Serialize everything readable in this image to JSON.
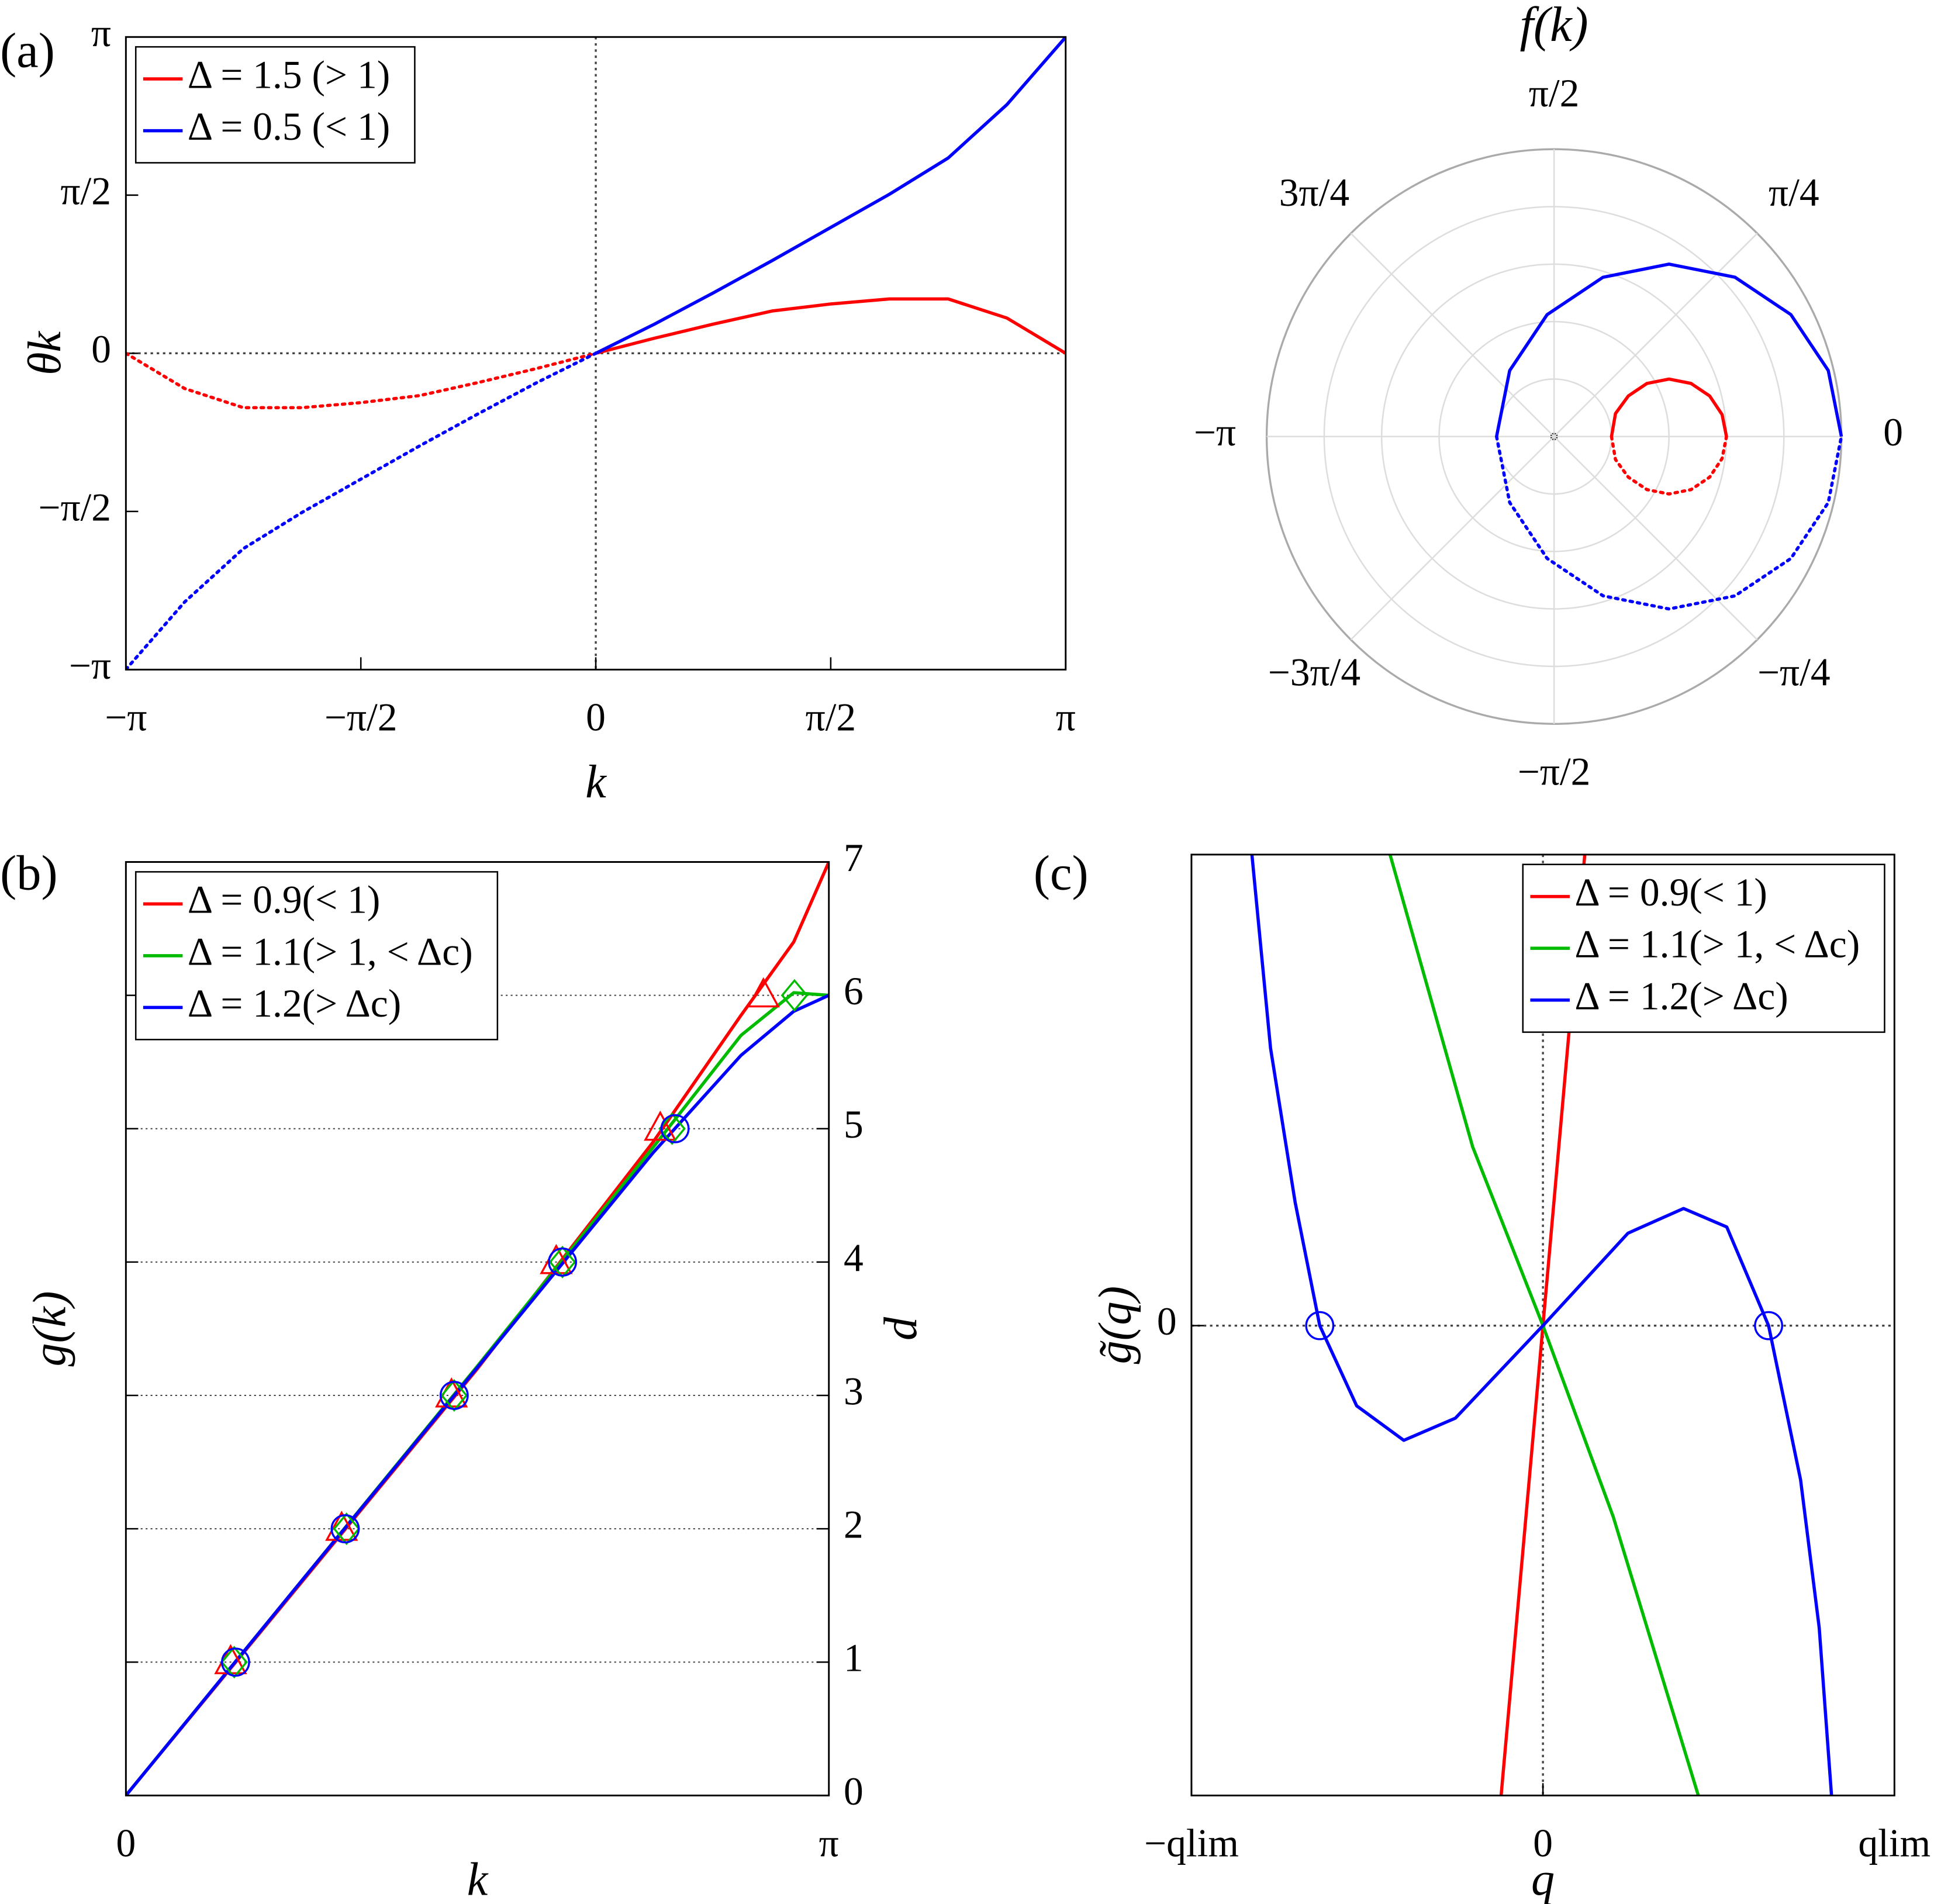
{
  "chart_data": [
    {
      "type": "line",
      "panel_label": "(a)",
      "xlabel": "k",
      "ylabel": "θk",
      "xlim": [
        -3.1416,
        3.1416
      ],
      "ylim": [
        -3.1416,
        3.1416
      ],
      "xticks": [
        {
          "value": -3.1416,
          "label": "−π"
        },
        {
          "value": -1.5708,
          "label": "−π/2"
        },
        0,
        {
          "value": 1.5708,
          "label": "π/2"
        },
        {
          "value": 3.1416,
          "label": "π"
        }
      ],
      "yticks": [
        {
          "value": -3.1416,
          "label": "−π"
        },
        {
          "value": -1.5708,
          "label": "−π/2"
        },
        0,
        {
          "value": 1.5708,
          "label": "π/2"
        },
        {
          "value": 3.1416,
          "label": "π"
        }
      ],
      "zero_lines": true,
      "line_style_negative_x": "dotted",
      "legend": "upper left",
      "x": [
        -3.1416,
        -2.7489,
        -2.3562,
        -1.9635,
        -1.5708,
        -1.1781,
        -0.7854,
        -0.3927,
        0,
        0.3927,
        0.7854,
        1.1781,
        1.5708,
        1.9635,
        2.3562,
        2.7489,
        3.1416
      ],
      "series": [
        {
          "name": "Δ = 1.5 (> 1)",
          "color": "#ff0000",
          "values": [
            0,
            -0.35,
            -0.54,
            -0.54,
            -0.49,
            -0.42,
            -0.29,
            -0.15,
            0,
            0.15,
            0.29,
            0.42,
            0.49,
            0.54,
            0.54,
            0.35,
            0
          ]
        },
        {
          "name": "Δ = 0.5 (< 1)",
          "color": "#0000ff",
          "values": [
            -3.14,
            -2.47,
            -1.94,
            -1.58,
            -1.25,
            -0.92,
            -0.6,
            -0.29,
            0,
            0.29,
            0.6,
            0.92,
            1.25,
            1.58,
            1.94,
            2.47,
            3.14
          ]
        }
      ]
    },
    {
      "type": "polar",
      "title": "f(k)",
      "rlim": [
        0,
        5
      ],
      "rticks": [
        1,
        2,
        3,
        4,
        5
      ],
      "angle_ticks": [
        0,
        {
          "value": 0.7854,
          "label": "π/4"
        },
        {
          "value": 1.5708,
          "label": "π/2"
        },
        {
          "value": 2.3562,
          "label": "3π/4"
        },
        {
          "value": -3.1416,
          "label": "−π"
        },
        {
          "value": -2.3562,
          "label": "−3π/4"
        },
        {
          "value": -1.5708,
          "label": "−π/2"
        },
        {
          "value": -0.7854,
          "label": "−π/4"
        }
      ],
      "line_style_first_half": "dotted",
      "series": [
        {
          "color": "#ff0000",
          "theta": [
            0,
            -0.3587,
            -0.5004,
            -0.5192,
            -0.4636,
            -0.3701,
            -0.2554,
            -0.1302,
            0,
            0.1302,
            0.2554,
            0.3701,
            0.4636,
            0.5192,
            0.5004,
            0.3587,
            0
          ],
          "r": [
            1,
            1.142,
            1.474,
            1.862,
            2.236,
            2.556,
            2.798,
            2.949,
            3,
            2.949,
            2.798,
            2.556,
            2.236,
            1.862,
            1.474,
            1.142,
            1
          ]
        },
        {
          "color": "#0000ff",
          "theta": [
            -3.1416,
            -2.1632,
            -1.6278,
            -1.2725,
            -0.9828,
            -0.7222,
            -0.4756,
            -0.2363,
            0,
            0.2363,
            0.4756,
            0.7222,
            0.9828,
            1.2725,
            1.6278,
            2.1632,
            3.1416
          ],
          "r": [
            1,
            1.383,
            2.124,
            2.9,
            3.606,
            4.195,
            4.635,
            4.908,
            5,
            4.908,
            4.635,
            4.195,
            3.606,
            2.9,
            2.124,
            1.383,
            1
          ]
        }
      ]
    },
    {
      "type": "line",
      "panel_label": "(b)",
      "xlabel": "k",
      "ylabel": "g(k)",
      "ylabel_right": "d",
      "y_tick_side": "right",
      "xlim": [
        0,
        3.1416
      ],
      "ylim": [
        0,
        7
      ],
      "xticks": [
        0,
        {
          "value": 3.1416,
          "label": "π"
        }
      ],
      "yticks": [
        0,
        1,
        2,
        3,
        4,
        5,
        6,
        7
      ],
      "grid": "y",
      "legend": "upper left",
      "series": [
        {
          "name": "Δ = 0.9(< 1)",
          "color": "#ff0000",
          "x": [
            0,
            0.7854,
            1.5708,
            2.3562,
            2.7489,
            2.9845,
            3.1416
          ],
          "values": [
            0,
            1.6,
            3.2,
            4.9,
            5.85,
            6.4,
            7
          ],
          "marker": "triangle",
          "marker_x": [
            0.468,
            0.964,
            1.455,
            1.923,
            2.388,
            2.849
          ],
          "marker_values": [
            1,
            2,
            3,
            4,
            5,
            6
          ]
        },
        {
          "name": "Δ = 1.1(> 1, < Δc)",
          "color": "#00bb00",
          "x": [
            0,
            0.7854,
            1.5708,
            2.3562,
            2.7489,
            2.9845,
            3.1416
          ],
          "values": [
            0,
            1.61,
            3.22,
            4.86,
            5.7,
            6.02,
            6
          ],
          "marker": "diamond",
          "marker_x": [
            0.484,
            0.986,
            1.467,
            1.951,
            2.441,
            2.988
          ],
          "marker_values": [
            1,
            2,
            3,
            4,
            5,
            6
          ]
        },
        {
          "name": "Δ = 1.2(> Δc)",
          "color": "#0000ff",
          "x": [
            0,
            0.7854,
            1.5708,
            2.3562,
            2.7489,
            2.9845,
            3.1416
          ],
          "values": [
            0,
            1.61,
            3.21,
            4.82,
            5.55,
            5.88,
            6
          ],
          "marker": "circle",
          "marker_x": [
            0.49,
            0.98,
            1.467,
            1.951,
            2.454
          ],
          "marker_values": [
            1,
            2,
            3,
            4,
            5
          ]
        }
      ]
    },
    {
      "type": "line",
      "panel_label": "(c)",
      "xlabel": "q",
      "ylabel": "g̃(q)",
      "xlim": [
        -1,
        1
      ],
      "ylim": [
        -3.81,
        3.82
      ],
      "xticks": [
        {
          "value": -1,
          "label": "−qlim"
        },
        0,
        {
          "value": 1,
          "label": "qlim"
        }
      ],
      "yticks": [
        0
      ],
      "zero_lines": true,
      "legend": "upper right",
      "series": [
        {
          "name": "Δ = 0.9(< 1)",
          "color": "#ff0000",
          "x": [
            -0.119,
            0,
            0.119
          ],
          "values": [
            -3.81,
            0,
            3.82
          ]
        },
        {
          "name": "Δ = 1.1(> 1, < Δc)",
          "color": "#00bb00",
          "x": [
            -0.435,
            -0.2,
            0,
            0.2,
            0.442
          ],
          "values": [
            3.82,
            1.45,
            0,
            -1.55,
            -3.81
          ]
        },
        {
          "name": "Δ = 1.2(> Δc)",
          "color": "#0000ff",
          "x": [
            -0.828,
            -0.775,
            -0.705,
            -0.635,
            -0.53,
            -0.396,
            -0.249,
            0,
            0.242,
            0.4,
            0.523,
            0.642,
            0.733,
            0.786,
            0.821
          ],
          "values": [
            3.82,
            2.25,
            1.0,
            0,
            -0.65,
            -0.93,
            -0.75,
            0,
            0.75,
            0.95,
            0.8,
            0,
            -1.25,
            -2.45,
            -3.81
          ],
          "marker": "circle",
          "marker_x": [
            -0.635,
            0.642
          ],
          "marker_values": [
            0,
            0
          ]
        }
      ]
    }
  ]
}
